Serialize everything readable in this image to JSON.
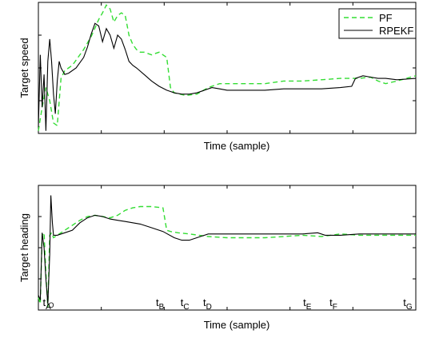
{
  "chart_data": [
    {
      "type": "line",
      "title": "",
      "xlabel": "Time (sample)",
      "ylabel": "Target speed",
      "xlim": [
        0,
        100
      ],
      "ylim": [
        0,
        100
      ],
      "grid": false,
      "legend_position": "top-right",
      "x_tick_labels": [],
      "series": [
        {
          "name": "PF",
          "color": "#33dd33",
          "style": "dashed",
          "x": [
            0,
            1,
            2,
            3,
            4,
            5,
            6,
            7,
            8,
            9,
            10,
            12,
            14,
            16,
            17,
            18,
            19,
            20,
            21,
            22,
            23,
            24,
            25,
            26,
            27,
            28,
            30,
            32,
            34,
            35,
            36,
            39,
            42,
            45,
            48,
            50,
            52,
            54,
            57,
            60,
            65,
            70,
            75,
            80,
            85,
            88,
            90,
            92,
            95,
            100
          ],
          "y": [
            2,
            20,
            35,
            25,
            8,
            6,
            42,
            48,
            50,
            52,
            56,
            64,
            74,
            87,
            92,
            98,
            95,
            85,
            90,
            92,
            90,
            75,
            68,
            64,
            62,
            62,
            60,
            62,
            58,
            35,
            31,
            29,
            30,
            35,
            38,
            38,
            38,
            38,
            38,
            38,
            40,
            40,
            41,
            42,
            42,
            43,
            40,
            38,
            40,
            44
          ]
        },
        {
          "name": "RPEKF",
          "color": "#000000",
          "style": "solid",
          "x": [
            0,
            0.5,
            1,
            1.5,
            2,
            2.5,
            3,
            3.5,
            4,
            4.5,
            5,
            5.5,
            6,
            7,
            8,
            10,
            12,
            13,
            14,
            15,
            16,
            17,
            18,
            19,
            20,
            21,
            22,
            23,
            24,
            25,
            26,
            28,
            30,
            32,
            34,
            35,
            36,
            38,
            40,
            42,
            44,
            46,
            48,
            50,
            55,
            60,
            65,
            70,
            75,
            80,
            83,
            84,
            86,
            88,
            90,
            92,
            95,
            100
          ],
          "y": [
            5,
            60,
            20,
            45,
            2,
            55,
            72,
            55,
            30,
            15,
            40,
            55,
            50,
            45,
            46,
            50,
            58,
            66,
            76,
            84,
            82,
            70,
            80,
            75,
            65,
            75,
            72,
            64,
            55,
            52,
            50,
            45,
            40,
            36,
            33,
            32,
            31,
            30,
            30,
            31,
            33,
            35,
            34,
            33,
            33,
            33,
            34,
            34,
            34,
            35,
            36,
            42,
            44,
            43,
            42,
            42,
            41,
            42
          ]
        }
      ]
    },
    {
      "type": "line",
      "title": "",
      "xlabel": "Time (sample)",
      "ylabel": "Target heading",
      "xlim": [
        0,
        100
      ],
      "ylim": [
        0,
        100
      ],
      "grid": false,
      "legend_position": "",
      "x_tick_labels": [
        {
          "x": 2,
          "base": "t",
          "sub": "A",
          "extra": "O"
        },
        {
          "x": 32,
          "base": "t",
          "sub": "B"
        },
        {
          "x": 38.5,
          "base": "t",
          "sub": "C"
        },
        {
          "x": 44.5,
          "base": "t",
          "sub": "D"
        },
        {
          "x": 71,
          "base": "t",
          "sub": "E"
        },
        {
          "x": 78,
          "base": "t",
          "sub": "F"
        },
        {
          "x": 97.5,
          "base": "t",
          "sub": "G"
        }
      ],
      "series": [
        {
          "name": "PF",
          "color": "#33dd33",
          "style": "dashed",
          "x": [
            0,
            0.5,
            1,
            1.5,
            2,
            2.5,
            3,
            3.5,
            4,
            5,
            7,
            9,
            11,
            13,
            15,
            17,
            19,
            21,
            23,
            25,
            27,
            30,
            33,
            34,
            35,
            37,
            40,
            45,
            50,
            55,
            60,
            65,
            70,
            75,
            80,
            85,
            90,
            95,
            100
          ],
          "y": [
            10,
            5,
            60,
            62,
            30,
            2,
            60,
            62,
            58,
            60,
            64,
            68,
            72,
            75,
            76,
            75,
            74,
            76,
            80,
            82,
            83,
            83,
            82,
            64,
            63,
            62,
            61,
            59,
            58,
            58,
            58,
            59,
            60,
            59,
            61,
            60,
            60,
            60,
            60
          ]
        },
        {
          "name": "RPEKF",
          "color": "#000000",
          "style": "solid",
          "x": [
            0,
            0.5,
            1,
            1.5,
            2,
            2.5,
            3,
            3.3,
            3.7,
            4,
            5,
            7,
            9,
            11,
            13,
            15,
            17,
            19,
            21,
            23,
            25,
            27,
            30,
            33,
            36,
            38,
            40,
            42,
            45,
            50,
            55,
            60,
            65,
            70,
            74,
            76,
            80,
            85,
            90,
            95,
            100
          ],
          "y": [
            12,
            8,
            62,
            50,
            25,
            5,
            45,
            92,
            70,
            60,
            60,
            62,
            64,
            70,
            74,
            76,
            75,
            73,
            72,
            71,
            70,
            69,
            66,
            63,
            58,
            56,
            56,
            58,
            61,
            61,
            61,
            61,
            61,
            61,
            62,
            60,
            60,
            61,
            61,
            61,
            61
          ]
        }
      ]
    }
  ]
}
